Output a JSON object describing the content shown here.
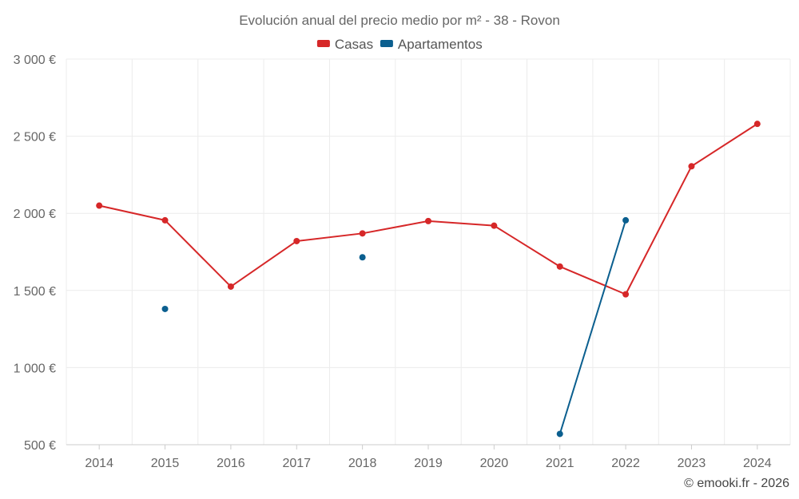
{
  "chart_data": {
    "type": "line",
    "title": "Evolución anual del precio medio por m² - 38 - Rovon",
    "xlabel": "",
    "ylabel": "",
    "categories": [
      "2014",
      "2015",
      "2016",
      "2017",
      "2018",
      "2019",
      "2020",
      "2021",
      "2022",
      "2023",
      "2024"
    ],
    "ylim": [
      500,
      3000
    ],
    "yticks": [
      500,
      1000,
      1500,
      2000,
      2500,
      3000
    ],
    "ytick_labels": [
      "500 €",
      "1 000 €",
      "1 500 €",
      "2 000 €",
      "2 500 €",
      "3 000 €"
    ],
    "grid": true,
    "legend_position": "top-center",
    "series": [
      {
        "name": "Casas",
        "color": "#d62728",
        "values": [
          2050,
          1955,
          1525,
          1820,
          1870,
          1950,
          1920,
          1655,
          1475,
          2305,
          2580
        ]
      },
      {
        "name": "Apartamentos",
        "color": "#0b5f8f",
        "values": [
          null,
          1380,
          null,
          null,
          1715,
          null,
          null,
          570,
          1955,
          null,
          null
        ]
      }
    ],
    "credit": "© emooki.fr - 2026"
  }
}
